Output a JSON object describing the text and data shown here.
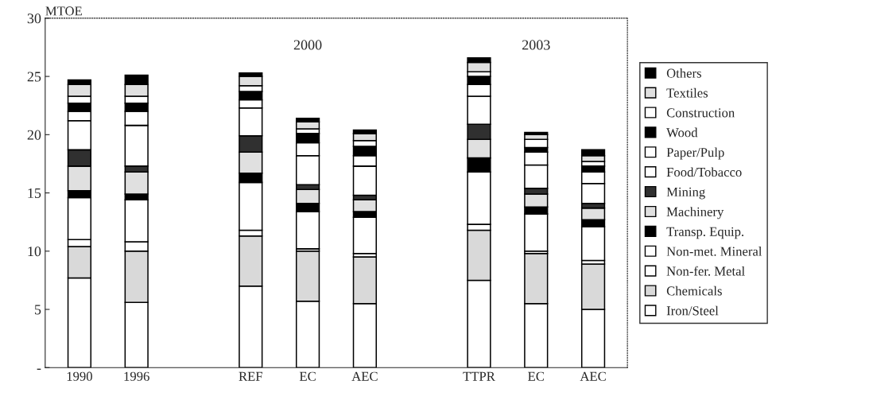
{
  "chart_data": {
    "type": "bar",
    "stacked": true,
    "ylabel": "MTOE",
    "categories": [
      "1990",
      "1996",
      null,
      "REF",
      "EC",
      "AEC",
      null,
      "TTPR",
      "EC",
      "AEC"
    ],
    "series": [
      {
        "name": "Iron/Steel",
        "color": "#ffffff",
        "values": [
          7.7,
          5.6,
          null,
          7.0,
          5.7,
          5.5,
          null,
          7.5,
          5.5,
          5.0
        ]
      },
      {
        "name": "Chemicals",
        "color": "#d9d9d9",
        "values": [
          2.7,
          4.4,
          null,
          4.3,
          4.3,
          4.0,
          null,
          4.3,
          4.3,
          3.9
        ]
      },
      {
        "name": "Non-fer. Metal",
        "color": "#ffffff",
        "values": [
          0.6,
          0.8,
          null,
          0.5,
          0.2,
          0.3,
          null,
          0.5,
          0.2,
          0.3
        ]
      },
      {
        "name": "Non-met. Mineral",
        "color": "#ffffff",
        "values": [
          3.6,
          3.6,
          null,
          4.1,
          3.2,
          3.1,
          null,
          4.5,
          3.2,
          2.9
        ]
      },
      {
        "name": "Transp. Equip.",
        "color": "#000000",
        "values": [
          0.6,
          0.5,
          null,
          0.8,
          0.7,
          0.5,
          null,
          1.2,
          0.6,
          0.6
        ]
      },
      {
        "name": "Machinery",
        "color": "#e0e0e0",
        "values": [
          2.1,
          1.9,
          null,
          1.8,
          1.2,
          1.0,
          null,
          1.6,
          1.1,
          1.0
        ]
      },
      {
        "name": "Mining",
        "color": "#303030",
        "values": [
          1.4,
          0.5,
          null,
          1.4,
          0.4,
          0.4,
          null,
          1.3,
          0.5,
          0.4
        ]
      },
      {
        "name": "Food/Tobacco",
        "color": "#ffffff",
        "values": [
          2.5,
          3.5,
          null,
          2.4,
          2.5,
          2.5,
          null,
          2.4,
          2.0,
          1.7
        ]
      },
      {
        "name": "Paper/Pulp",
        "color": "#ffffff",
        "values": [
          0.8,
          1.2,
          null,
          0.7,
          1.1,
          0.9,
          null,
          1.0,
          1.1,
          1.0
        ]
      },
      {
        "name": "Wood",
        "color": "#000000",
        "values": [
          0.7,
          0.7,
          null,
          0.7,
          0.8,
          0.8,
          null,
          0.7,
          0.4,
          0.5
        ]
      },
      {
        "name": "Construction",
        "color": "#ffffff",
        "values": [
          0.6,
          0.6,
          null,
          0.5,
          0.4,
          0.5,
          null,
          0.4,
          0.7,
          0.4
        ]
      },
      {
        "name": "Textiles",
        "color": "#e0e0e0",
        "values": [
          1.0,
          1.0,
          null,
          0.8,
          0.6,
          0.6,
          null,
          0.8,
          0.4,
          0.5
        ]
      },
      {
        "name": "Others",
        "color": "#000000",
        "values": [
          0.4,
          0.8,
          null,
          0.3,
          0.3,
          0.3,
          null,
          0.4,
          0.2,
          0.5
        ]
      }
    ],
    "ylim": [
      0,
      30
    ],
    "yticks": [
      {
        "value": 0,
        "label": "-"
      },
      5,
      10,
      15,
      20,
      25,
      30
    ],
    "annotations": [
      "2000",
      "2003"
    ],
    "legend": "right",
    "grid": false
  }
}
